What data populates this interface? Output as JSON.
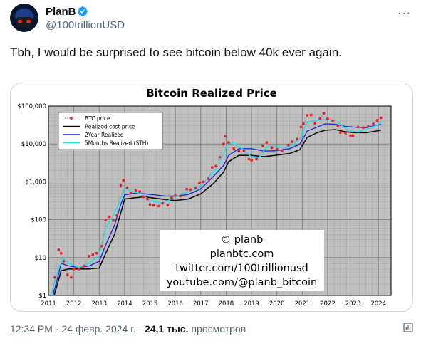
{
  "author": {
    "name": "PlanB",
    "handle": "@100trillionUSD",
    "verified": true
  },
  "tweet": {
    "text": "Tbh, I would be surprised to see bitcoin below 40k ever again."
  },
  "meta": {
    "time": "12:34 PM",
    "date": "24 февр. 2024 г.",
    "views_count": "24,1 тыс.",
    "views_label": "просмотров"
  },
  "icons": {
    "more": "more-icon",
    "verified": "verified-badge-icon",
    "stats": "stats-icon"
  },
  "colors": {
    "btc": "#e8202a",
    "realized": "#111111",
    "two_year": "#1f2bd6",
    "sth": "#22e0ee",
    "plot_bg": "#c0c0c0",
    "verified": "#1d9bf0"
  },
  "chart_data": {
    "type": "line",
    "title": "Bitcoin Realized Price",
    "y_scale": "log",
    "ylim": [
      1,
      100000
    ],
    "y_ticks": [
      "$1",
      "$10",
      "$100",
      "$1,000",
      "$10,000",
      "$100,000"
    ],
    "x_ticks": [
      "2011",
      "2012",
      "2013",
      "2014",
      "2015",
      "2016",
      "2017",
      "2018",
      "2019",
      "2020",
      "2021",
      "2022",
      "2023",
      "2024"
    ],
    "xlim": [
      2011,
      2024.5
    ],
    "legend_position": "top-left",
    "watermark": [
      "© planb",
      "planbtc.com",
      "twitter.com/100trillionusd",
      "youtube.com/@planb_bitcoin"
    ],
    "series": [
      {
        "name": "BTC price",
        "style": "points",
        "x": [
          2011.1,
          2011.25,
          2011.4,
          2011.5,
          2011.6,
          2011.75,
          2011.9,
          2012.0,
          2012.2,
          2012.4,
          2012.6,
          2012.75,
          2012.9,
          2013.1,
          2013.25,
          2013.4,
          2013.55,
          2013.7,
          2013.85,
          2013.95,
          2014.1,
          2014.25,
          2014.45,
          2014.6,
          2014.75,
          2014.9,
          2015.0,
          2015.15,
          2015.35,
          2015.5,
          2015.7,
          2015.85,
          2016.0,
          2016.2,
          2016.45,
          2016.6,
          2016.8,
          2016.95,
          2017.1,
          2017.3,
          2017.45,
          2017.6,
          2017.75,
          2017.9,
          2017.96,
          2018.1,
          2018.3,
          2018.5,
          2018.7,
          2018.9,
          2019.0,
          2019.2,
          2019.45,
          2019.6,
          2019.8,
          2020.0,
          2020.2,
          2020.45,
          2020.6,
          2020.8,
          2020.95,
          2021.05,
          2021.2,
          2021.35,
          2021.5,
          2021.7,
          2021.85,
          2022.0,
          2022.2,
          2022.4,
          2022.5,
          2022.7,
          2022.9,
          2023.0,
          2023.2,
          2023.4,
          2023.6,
          2023.8,
          2023.95,
          2024.1
        ],
        "y": [
          0.4,
          3,
          16,
          13,
          8,
          3.5,
          3,
          5,
          5,
          6,
          11,
          12,
          13,
          20,
          100,
          120,
          95,
          130,
          800,
          1100,
          700,
          500,
          600,
          550,
          400,
          350,
          250,
          240,
          230,
          270,
          240,
          380,
          430,
          420,
          640,
          620,
          700,
          950,
          1000,
          1200,
          2400,
          2600,
          4500,
          10000,
          16000,
          11000,
          7500,
          6500,
          6600,
          4000,
          3700,
          4000,
          9000,
          11000,
          8000,
          7200,
          6600,
          9400,
          11500,
          13500,
          28000,
          34000,
          57000,
          58000,
          35000,
          47000,
          65000,
          46000,
          41000,
          30000,
          20000,
          19500,
          16500,
          16600,
          28000,
          27000,
          29000,
          34000,
          42000,
          49000
        ]
      },
      {
        "name": "Realized cost price",
        "style": "line",
        "x": [
          2011.0,
          2011.3,
          2011.5,
          2011.8,
          2012.2,
          2012.6,
          2013.0,
          2013.3,
          2013.6,
          2013.85,
          2014.0,
          2014.4,
          2014.8,
          2015.2,
          2015.6,
          2016.0,
          2016.5,
          2017.0,
          2017.5,
          2017.9,
          2018.1,
          2018.5,
          2019.0,
          2019.5,
          2020.0,
          2020.5,
          2020.9,
          2021.2,
          2021.6,
          2021.9,
          2022.3,
          2022.7,
          2023.0,
          2023.5,
          2024.1
        ],
        "y": [
          0.3,
          1.5,
          4.5,
          5,
          5,
          5,
          5.3,
          15,
          40,
          150,
          350,
          380,
          400,
          370,
          340,
          320,
          350,
          480,
          900,
          1800,
          3400,
          5000,
          5000,
          4600,
          5100,
          5600,
          7000,
          15000,
          20000,
          23000,
          24000,
          21000,
          20000,
          19800,
          23000
        ]
      },
      {
        "name": "2Year Realized",
        "style": "line",
        "x": [
          2011.0,
          2011.3,
          2011.5,
          2011.8,
          2012.2,
          2012.6,
          2013.0,
          2013.3,
          2013.6,
          2013.85,
          2014.0,
          2014.4,
          2014.8,
          2015.2,
          2015.6,
          2016.0,
          2016.5,
          2017.0,
          2017.5,
          2017.9,
          2018.1,
          2018.5,
          2019.0,
          2019.5,
          2020.0,
          2020.5,
          2020.9,
          2021.2,
          2021.6,
          2021.9,
          2022.3,
          2022.7,
          2023.0,
          2023.5,
          2024.1
        ],
        "y": [
          0.4,
          2,
          7,
          6,
          5.5,
          6,
          8,
          25,
          70,
          250,
          450,
          500,
          480,
          450,
          420,
          420,
          460,
          650,
          1400,
          2700,
          5000,
          7500,
          7500,
          6500,
          6700,
          7500,
          9800,
          22000,
          28000,
          34000,
          33000,
          29000,
          28000,
          27000,
          33000
        ]
      },
      {
        "name": "5Months Realized (STH)",
        "style": "line",
        "x": [
          2011.1,
          2011.35,
          2011.55,
          2011.8,
          2012.2,
          2012.6,
          2013.0,
          2013.25,
          2013.5,
          2013.85,
          2014.0,
          2014.3,
          2014.6,
          2015.0,
          2015.5,
          2016.0,
          2016.5,
          2016.9,
          2017.3,
          2017.6,
          2017.9,
          2018.05,
          2018.3,
          2018.7,
          2019.0,
          2019.3,
          2019.6,
          2019.9,
          2020.3,
          2020.6,
          2020.9,
          2021.2,
          2021.5,
          2021.8,
          2022.0,
          2022.3,
          2022.6,
          2022.9,
          2023.2,
          2023.6,
          2023.9,
          2024.1
        ],
        "y": [
          1,
          4,
          10,
          7,
          5.5,
          7,
          12,
          60,
          110,
          350,
          700,
          550,
          500,
          320,
          270,
          400,
          560,
          700,
          1300,
          2200,
          5500,
          10500,
          10500,
          7000,
          4500,
          4400,
          8400,
          8600,
          7800,
          9200,
          14000,
          37000,
          42000,
          45000,
          45000,
          41000,
          29000,
          22000,
          20500,
          26000,
          30000,
          38000
        ]
      }
    ]
  }
}
